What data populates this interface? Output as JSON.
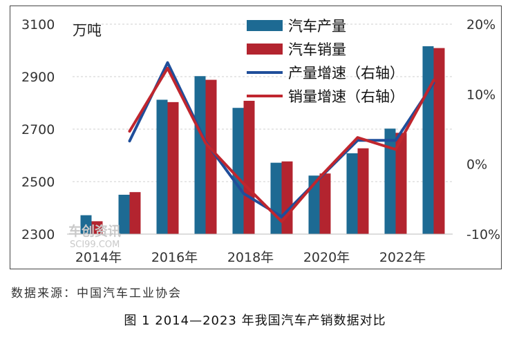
{
  "colors": {
    "production": "#1d6a93",
    "sales": "#b3242f",
    "production_growth": "#1f4e9a",
    "sales_growth": "#c0262e",
    "grid": "#cfcfcf"
  },
  "chart_data": {
    "type": "bar",
    "unit_label": "万吨",
    "categories": [
      "2014年",
      "2015年",
      "2016年",
      "2017年",
      "2018年",
      "2019年",
      "2020年",
      "2021年",
      "2022年",
      "2023年"
    ],
    "x_tick_labels": [
      "2014年",
      "2016年",
      "2018年",
      "2020年",
      "2022年"
    ],
    "series": [
      {
        "name": "汽车产量",
        "kind": "bar",
        "axis": "left",
        "values": [
          2372,
          2450,
          2812,
          2902,
          2781,
          2572,
          2523,
          2608,
          2702,
          3016
        ]
      },
      {
        "name": "汽车销量",
        "kind": "bar",
        "axis": "left",
        "values": [
          2349,
          2460,
          2803,
          2888,
          2808,
          2577,
          2531,
          2627,
          2686,
          3009
        ]
      },
      {
        "name": "产量增速（右轴）",
        "kind": "line",
        "axis": "right",
        "values": [
          null,
          3.3,
          14.5,
          3.2,
          -4.2,
          -7.5,
          -2.0,
          3.4,
          3.4,
          11.6
        ]
      },
      {
        "name": "销量增速（右轴）",
        "kind": "line",
        "axis": "right",
        "values": [
          null,
          4.7,
          13.7,
          3.0,
          -2.8,
          -8.2,
          -1.9,
          3.8,
          2.1,
          12.0
        ]
      }
    ],
    "y_left": {
      "ticks": [
        "2300",
        "2500",
        "2700",
        "2900",
        "3100"
      ],
      "min": 2300,
      "max": 3100
    },
    "y_right": {
      "ticks": [
        "-10%",
        "0%",
        "10%",
        "20%"
      ],
      "min": -10,
      "max": 20
    },
    "grid": "horizontal dashed",
    "legend_position": "top-center"
  },
  "watermark": {
    "cn": "车创资讯",
    "en": "SCI99.COM"
  },
  "source_text": "数据来源：中国汽车工业协会",
  "caption": "图 1  2014—2023 年我国汽车产销数据对比"
}
